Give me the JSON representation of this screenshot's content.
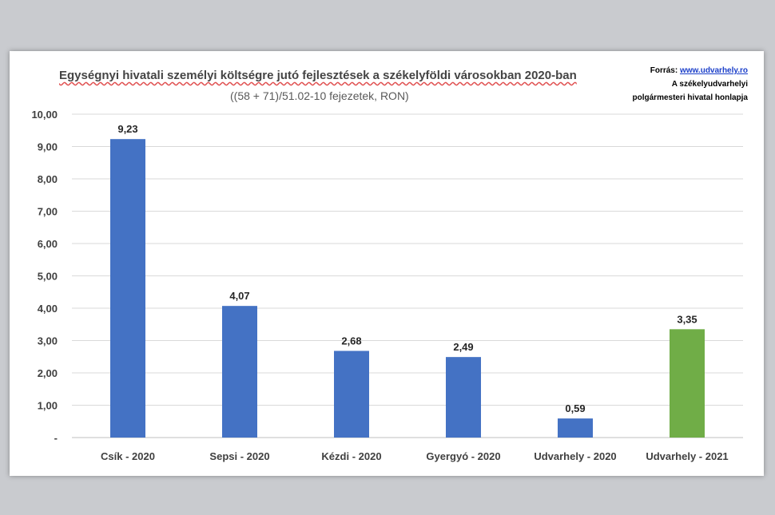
{
  "chart_data": {
    "type": "bar",
    "title": "Egységnyi hivatali személyi költségre jutó fejlesztések a székelyföldi városokban  2020-ban",
    "subtitle": "((58 + 71)/51.02-10 fejezetek, RON)",
    "categories": [
      "Csík - 2020",
      "Sepsi - 2020",
      "Kézdi - 2020",
      "Gyergyó - 2020",
      "Udvarhely - 2020",
      "Udvarhely - 2021"
    ],
    "values": [
      9.23,
      4.07,
      2.68,
      2.49,
      0.59,
      3.35
    ],
    "value_labels": [
      "9,23",
      "4,07",
      "2,68",
      "2,49",
      "0,59",
      "3,35"
    ],
    "bar_colors": [
      "#4472c4",
      "#4472c4",
      "#4472c4",
      "#4472c4",
      "#4472c4",
      "#70ad47"
    ],
    "y_ticks": [
      0,
      1,
      2,
      3,
      4,
      5,
      6,
      7,
      8,
      9,
      10
    ],
    "y_tick_labels": [
      "-",
      "1,00",
      "2,00",
      "3,00",
      "4,00",
      "5,00",
      "6,00",
      "7,00",
      "8,00",
      "9,00",
      "10,00"
    ],
    "ylim": [
      0,
      10
    ],
    "xlabel": "",
    "ylabel": "",
    "grid": true,
    "legend": "none"
  },
  "source": {
    "prefix": "Forrás: ",
    "link": "www.udvarhely.ro",
    "line2": "A székelyudvarhelyi",
    "line3": "polgármesteri hivatal honlapja"
  }
}
